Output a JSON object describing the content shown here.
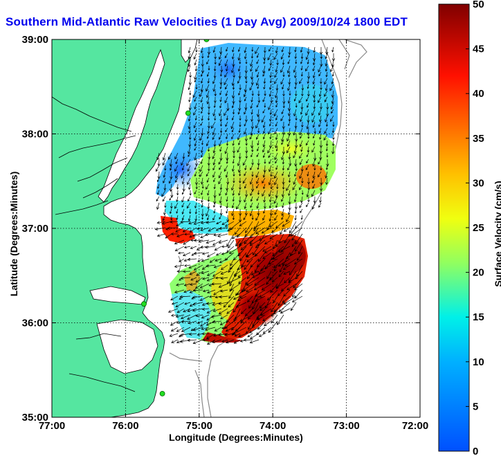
{
  "title": "Southern Mid-Atlantic Raw Velocities (1 Day Avg) 2009/10/24 1800 EDT",
  "xlabel": "Longitude (Degrees:Minutes)",
  "ylabel": "Latitude (Degrees:Minutes)",
  "colorbar_label": "Surface Velocity (cm/s)",
  "colors": {
    "land": "#55e6a0",
    "water": "#ffffff",
    "coast": "#000000",
    "isobath": "#888888",
    "station": "#22dd22"
  },
  "chart_data": {
    "type": "heatmap",
    "x_ticks": [
      "77:00",
      "76:00",
      "75:00",
      "74:00",
      "73:00",
      "72:00"
    ],
    "y_ticks": [
      "39:00",
      "38:00",
      "37:00",
      "36:00",
      "35:00"
    ],
    "colorbar_ticks": [
      "50",
      "45",
      "40",
      "35",
      "30",
      "25",
      "20",
      "15",
      "10",
      "5",
      "0"
    ],
    "xlim": [
      -77,
      -72
    ],
    "ylim": [
      35,
      39
    ],
    "clim": [
      0,
      50
    ],
    "grid": true,
    "stations": [
      {
        "lon": -74.9,
        "lat": 39.0
      },
      {
        "lon": -75.15,
        "lat": 38.22
      },
      {
        "lon": -75.75,
        "lat": 36.2
      },
      {
        "lon": -75.5,
        "lat": 35.25
      }
    ]
  }
}
